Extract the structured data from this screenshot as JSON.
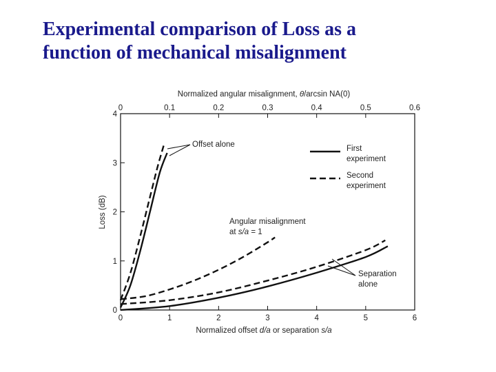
{
  "slide": {
    "title_line1": "Experimental comparison of Loss as a",
    "title_line2": "function of mechanical misalignment"
  },
  "chart_data": {
    "type": "line",
    "xlabel_bottom": {
      "pre": "Normalized offset ",
      "var1": "d/a",
      "mid": " or separation ",
      "var2": "s/a"
    },
    "xlabel_top": {
      "pre": "Normalized angular misalignment, ",
      "var": "θ",
      "post": "/arcsin NA(0)"
    },
    "ylabel": "Loss (dB)",
    "xlim": [
      0,
      6
    ],
    "x2lim": [
      0,
      0.6
    ],
    "ylim": [
      0,
      4
    ],
    "x_ticks": [
      "0",
      "1",
      "2",
      "3",
      "4",
      "5",
      "6"
    ],
    "x2_ticks": [
      "0",
      "0.1",
      "0.2",
      "0.3",
      "0.4",
      "0.5",
      "0.6"
    ],
    "y_ticks": [
      "0",
      "1",
      "2",
      "3",
      "4"
    ],
    "grid": false,
    "legend": {
      "position": "top-right",
      "entries": [
        {
          "label_line1": "First",
          "label_line2": "experiment",
          "style": "solid"
        },
        {
          "label_line1": "Second",
          "label_line2": "experiment",
          "style": "dashed"
        }
      ]
    },
    "annotations": {
      "offset": "Offset alone",
      "angular_line1": "Angular misalignment",
      "angular_line2_pre": "at ",
      "angular_line2_var": "s/a",
      "angular_line2_post": " = 1",
      "separation_line1": "Separation",
      "separation_line2": "alone"
    },
    "series": [
      {
        "group": "offset",
        "style": "solid",
        "axis": "bottom",
        "x": [
          0,
          0.2,
          0.4,
          0.6,
          0.8,
          0.95
        ],
        "y": [
          0.05,
          0.5,
          1.2,
          2.0,
          2.8,
          3.2
        ]
      },
      {
        "group": "offset",
        "style": "dashed",
        "axis": "bottom",
        "x": [
          0,
          0.2,
          0.4,
          0.6,
          0.75,
          0.88
        ],
        "y": [
          0.2,
          0.75,
          1.5,
          2.3,
          2.9,
          3.35
        ]
      },
      {
        "group": "angular",
        "style": "dashed",
        "axis": "top",
        "x": [
          0,
          0.05,
          0.1,
          0.15,
          0.2,
          0.25,
          0.3,
          0.315
        ],
        "y": [
          0.22,
          0.28,
          0.42,
          0.6,
          0.82,
          1.08,
          1.38,
          1.48
        ]
      },
      {
        "group": "separation",
        "style": "solid",
        "axis": "bottom",
        "x": [
          0,
          1,
          2,
          3,
          4,
          5,
          5.45
        ],
        "y": [
          0.0,
          0.08,
          0.25,
          0.48,
          0.76,
          1.08,
          1.3
        ]
      },
      {
        "group": "separation",
        "style": "dashed",
        "axis": "bottom",
        "x": [
          0,
          1,
          2,
          3,
          4,
          5,
          5.4
        ],
        "y": [
          0.12,
          0.2,
          0.36,
          0.6,
          0.88,
          1.22,
          1.42
        ]
      }
    ]
  }
}
